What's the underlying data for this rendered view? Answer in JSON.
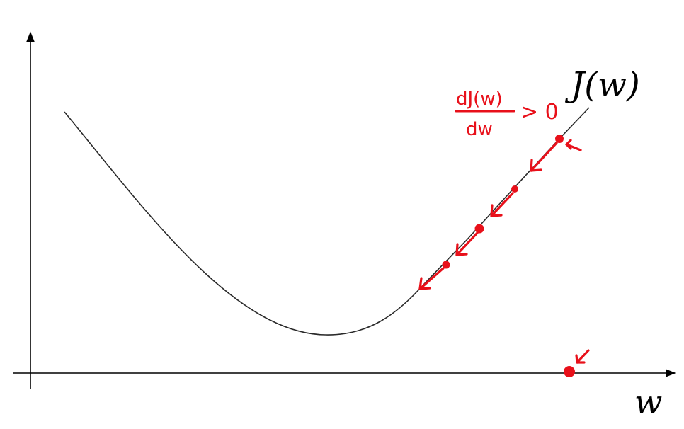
{
  "figure": {
    "curve_label": "J(w)",
    "x_axis_label": "w",
    "annotation": {
      "numerator": "dJ(w)",
      "denominator": "dw",
      "relation": "> 0"
    }
  },
  "colors": {
    "axis": "#000000",
    "curve": "#2a2a2a",
    "annotation": "#e8101a"
  }
}
